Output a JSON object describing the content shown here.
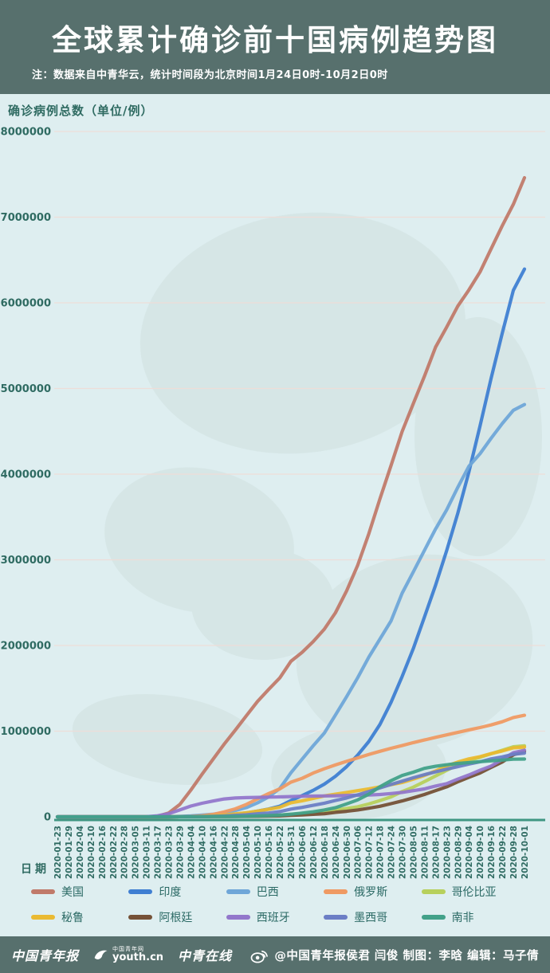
{
  "header": {
    "title": "全球累计确诊前十国病例趋势图",
    "note": "注：数据来自中青华云，统计时间段为北京时间1月24日0时-10月2日0时"
  },
  "colors": {
    "banner": "#57706d",
    "chart_background": "#deeef0",
    "axis_text": "#2f6b62",
    "grid_line": "#eeddd8",
    "axis_line": "#3f9682",
    "map_watermark": "#cfe0de",
    "legend_text": "#2a6964"
  },
  "chart_data": {
    "type": "line",
    "title": "全球累计确诊前十国病例趋势图",
    "xlabel": "日期",
    "ylabel": "确诊病例总数（单位/例）",
    "ylim": [
      0,
      8000000
    ],
    "y_ticks": [
      8000000,
      7000000,
      6000000,
      5000000,
      4000000,
      3000000,
      2000000,
      1000000,
      0
    ],
    "grid": true,
    "legend_position": "bottom",
    "x": [
      "2020-01-23",
      "2020-01-29",
      "2020-02-04",
      "2020-02-10",
      "2020-02-16",
      "2020-02-22",
      "2020-02-28",
      "2020-03-05",
      "2020-03-11",
      "2020-03-17",
      "2020-03-23",
      "2020-03-29",
      "2020-04-04",
      "2020-04-10",
      "2020-04-16",
      "2020-04-22",
      "2020-04-28",
      "2020-05-04",
      "2020-05-10",
      "2020-05-16",
      "2020-05-22",
      "2020-05-31",
      "2020-06-06",
      "2020-06-12",
      "2020-06-18",
      "2020-06-24",
      "2020-06-30",
      "2020-07-06",
      "2020-07-12",
      "2020-07-18",
      "2020-07-24",
      "2020-07-30",
      "2020-08-05",
      "2020-08-11",
      "2020-08-17",
      "2020-08-23",
      "2020-08-29",
      "2020-09-04",
      "2020-09-10",
      "2020-09-16",
      "2020-09-22",
      "2020-09-28",
      "2020-10-01"
    ],
    "series": [
      {
        "name": "美国",
        "color": "#c07a6a",
        "values": [
          1,
          5,
          11,
          13,
          15,
          35,
          60,
          220,
          1300,
          6400,
          44000,
          143000,
          312000,
          496000,
          672000,
          849000,
          1012000,
          1181000,
          1347000,
          1487000,
          1621000,
          1816000,
          1920000,
          2046000,
          2191000,
          2381000,
          2636000,
          2936000,
          3304000,
          3711000,
          4101000,
          4498000,
          4823000,
          5141000,
          5482000,
          5715000,
          5961000,
          6150000,
          6360000,
          6630000,
          6900000,
          7150000,
          7460000
        ]
      },
      {
        "name": "印度",
        "color": "#3f7fd2",
        "values": [
          0,
          0,
          3,
          3,
          3,
          3,
          3,
          30,
          62,
          140,
          500,
          1000,
          3000,
          7600,
          13000,
          21000,
          31000,
          46000,
          67000,
          91000,
          125000,
          190000,
          247000,
          309000,
          381000,
          473000,
          585000,
          720000,
          879000,
          1077000,
          1337000,
          1638000,
          1964000,
          2329000,
          2702000,
          3106000,
          3542000,
          4023000,
          4562000,
          5118000,
          5646000,
          6145000,
          6394000
        ]
      },
      {
        "name": "巴西",
        "color": "#6fa6d8",
        "values": [
          0,
          0,
          0,
          0,
          0,
          0,
          1,
          8,
          52,
          290,
          2200,
          4300,
          10300,
          19600,
          30400,
          45800,
          73200,
          108000,
          163000,
          233000,
          330000,
          514000,
          673000,
          829000,
          978000,
          1188000,
          1402000,
          1623000,
          1864000,
          2074000,
          2287000,
          2610000,
          2859000,
          3109000,
          3359000,
          3582000,
          3846000,
          4091000,
          4238000,
          4419000,
          4591000,
          4745000,
          4813000
        ]
      },
      {
        "name": "俄罗斯",
        "color": "#ef9a63",
        "values": [
          0,
          0,
          2,
          2,
          2,
          2,
          2,
          4,
          28,
          114,
          438,
          1530,
          4700,
          12000,
          28000,
          58000,
          93000,
          145000,
          209000,
          272000,
          326000,
          405000,
          449000,
          511000,
          561000,
          606000,
          647000,
          687000,
          727000,
          765000,
          800000,
          832000,
          866000,
          897000,
          927000,
          956000,
          985000,
          1015000,
          1042000,
          1073000,
          1110000,
          1159000,
          1185000
        ]
      },
      {
        "name": "哥伦比亚",
        "color": "#b7d05c",
        "values": [
          0,
          0,
          0,
          0,
          0,
          0,
          0,
          0,
          3,
          65,
          235,
          700,
          1400,
          2500,
          3400,
          4600,
          5900,
          7700,
          11000,
          14900,
          19100,
          29000,
          37000,
          46000,
          60000,
          78000,
          97000,
          117000,
          150000,
          190000,
          233000,
          295000,
          346000,
          410000,
          476000,
          541000,
          607000,
          658000,
          694000,
          736000,
          777000,
          818000,
          829000
        ]
      },
      {
        "name": "秘鲁",
        "color": "#eaba32",
        "values": [
          0,
          0,
          0,
          0,
          0,
          0,
          0,
          0,
          17,
          117,
          395,
          950,
          1800,
          5900,
          12500,
          20900,
          33900,
          47400,
          67300,
          88500,
          111000,
          164000,
          187000,
          214000,
          244000,
          264000,
          285000,
          305000,
          326000,
          350000,
          375000,
          400000,
          439000,
          483000,
          535000,
          594000,
          639000,
          676000,
          702000,
          738000,
          768000,
          805000,
          814000
        ]
      },
      {
        "name": "阿根廷",
        "color": "#755137",
        "values": [
          0,
          0,
          0,
          0,
          0,
          0,
          0,
          1,
          19,
          65,
          270,
          690,
          1450,
          2000,
          2600,
          3100,
          4100,
          4900,
          5800,
          7500,
          9900,
          16900,
          21000,
          28800,
          35600,
          52500,
          64500,
          80400,
          100200,
          122500,
          153500,
          185400,
          221000,
          260000,
          305000,
          350000,
          408000,
          461000,
          512000,
          577000,
          640000,
          723000,
          765000
        ]
      },
      {
        "name": "西班牙",
        "color": "#9277cb",
        "values": [
          0,
          0,
          0,
          2,
          2,
          2,
          32,
          260,
          2300,
          11700,
          35000,
          80000,
          126000,
          158000,
          184000,
          208000,
          220000,
          224000,
          227000,
          230000,
          233000,
          236000,
          240000,
          242000,
          244000,
          246000,
          249000,
          252000,
          254000,
          260000,
          272000,
          285000,
          305000,
          326000,
          359000,
          387000,
          440000,
          488000,
          543000,
          593000,
          671000,
          748000,
          778000
        ]
      },
      {
        "name": "墨西哥",
        "color": "#6b7ec5",
        "values": [
          0,
          0,
          0,
          0,
          0,
          0,
          1,
          5,
          8,
          82,
          367,
          848,
          1890,
          3440,
          5850,
          9500,
          16700,
          23500,
          35000,
          45000,
          60000,
          90000,
          110000,
          134000,
          159000,
          191000,
          220000,
          256000,
          295000,
          338000,
          378000,
          416000,
          456000,
          492000,
          525000,
          556000,
          585000,
          616000,
          642000,
          676000,
          700000,
          730000,
          743000
        ]
      },
      {
        "name": "南非",
        "color": "#42a189",
        "values": [
          0,
          0,
          0,
          0,
          0,
          0,
          0,
          0,
          7,
          62,
          270,
          1200,
          1600,
          2000,
          2500,
          3500,
          5000,
          6800,
          10000,
          14400,
          19100,
          31000,
          43400,
          58600,
          80400,
          106000,
          151000,
          197000,
          264000,
          351000,
          422000,
          483000,
          521000,
          566000,
          590000,
          607000,
          623000,
          633000,
          644000,
          653000,
          662000,
          673000,
          674000
        ]
      }
    ]
  },
  "footer": {
    "logo_paper": "中国青年报",
    "logo_site_top": "中国青年网",
    "logo_site": "youth.cn",
    "logo_online": "中青在线",
    "credit": "@中国青年报侯君 闫俊 制图：李晗 编辑：马子倩"
  }
}
